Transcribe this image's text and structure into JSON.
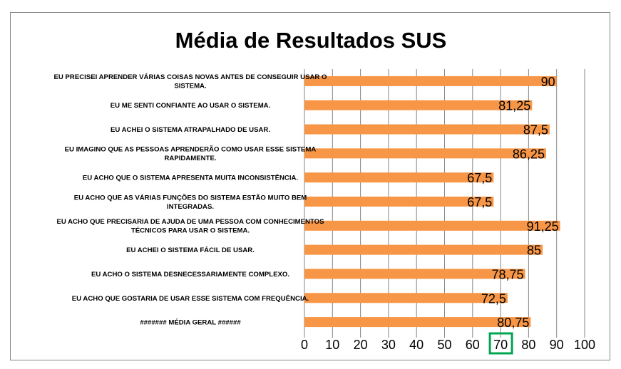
{
  "chart_data": {
    "type": "bar",
    "orientation": "horizontal",
    "title": "Média de Resultados SUS",
    "categories": [
      "EU PRECISEI APRENDER VÁRIAS COISAS NOVAS ANTES DE CONSEGUIR USAR O SISTEMA.",
      "EU ME SENTI CONFIANTE AO USAR O SISTEMA.",
      "EU ACHEI O SISTEMA ATRAPALHADO DE USAR.",
      "EU IMAGINO QUE AS PESSOAS APRENDERÃO COMO USAR ESSE SISTEMA RAPIDAMENTE.",
      "EU ACHO QUE O SISTEMA APRESENTA MUITA INCONSISTÊNCIA.",
      "EU ACHO QUE AS VÁRIAS FUNÇÕES DO SISTEMA ESTÃO MUITO BEM INTEGRADAS.",
      "EU ACHO QUE PRECISARIA DE AJUDA DE UMA PESSOA COM  CONHECIMENTOS TÉCNICOS PARA USAR O SISTEMA.",
      "EU ACHEI O SISTEMA FÁCIL DE USAR.",
      "EU ACHO O SISTEMA DESNECESSARIAMENTE COMPLEXO.",
      "EU ACHO QUE GOSTARIA DE USAR ESSE SISTEMA COM FREQUÊNCIA.",
      "####### MÉDIA GERAL ######"
    ],
    "category_lines": [
      [
        "EU PRECISEI APRENDER VÁRIAS COISAS NOVAS ANTES DE CONSEGUIR USAR O",
        "SISTEMA."
      ],
      [
        "EU ME SENTI CONFIANTE AO USAR O SISTEMA."
      ],
      [
        "EU ACHEI O SISTEMA ATRAPALHADO DE USAR."
      ],
      [
        "EU IMAGINO QUE AS PESSOAS APRENDERÃO COMO USAR ESSE SISTEMA",
        "RAPIDAMENTE."
      ],
      [
        "EU ACHO QUE O SISTEMA APRESENTA MUITA INCONSISTÊNCIA."
      ],
      [
        "EU ACHO QUE AS VÁRIAS FUNÇÕES DO SISTEMA ESTÃO MUITO BEM",
        "INTEGRADAS."
      ],
      [
        "EU ACHO QUE PRECISARIA DE AJUDA DE UMA PESSOA COM  CONHECIMENTOS",
        "TÉCNICOS PARA USAR O SISTEMA."
      ],
      [
        "EU ACHEI O SISTEMA FÁCIL DE USAR."
      ],
      [
        "EU ACHO O SISTEMA DESNECESSARIAMENTE COMPLEXO."
      ],
      [
        "EU ACHO QUE GOSTARIA DE USAR ESSE SISTEMA COM FREQUÊNCIA."
      ],
      [
        "####### MÉDIA GERAL ######"
      ]
    ],
    "values": [
      90,
      81.25,
      87.5,
      86.25,
      67.5,
      67.5,
      91.25,
      85,
      78.75,
      72.5,
      80.75
    ],
    "data_labels": [
      "90",
      "81,25",
      "87,5",
      "86,25",
      "67,5",
      "67,5",
      "91,25",
      "85",
      "78,75",
      "72,5",
      "80,75"
    ],
    "xlim": [
      0,
      100
    ],
    "xticks": [
      0,
      10,
      20,
      30,
      40,
      50,
      60,
      70,
      80,
      90,
      100
    ],
    "xtick_labels": [
      "0",
      "10",
      "20",
      "30",
      "40",
      "50",
      "60",
      "70",
      "80",
      "90",
      "100"
    ],
    "highlighted_tick": "70",
    "grid": "vertical",
    "legend": "none",
    "colors": {
      "bar": "#F79646",
      "gridline": "#868686",
      "axis": "#868686",
      "highlight_box": "#00A550"
    }
  }
}
